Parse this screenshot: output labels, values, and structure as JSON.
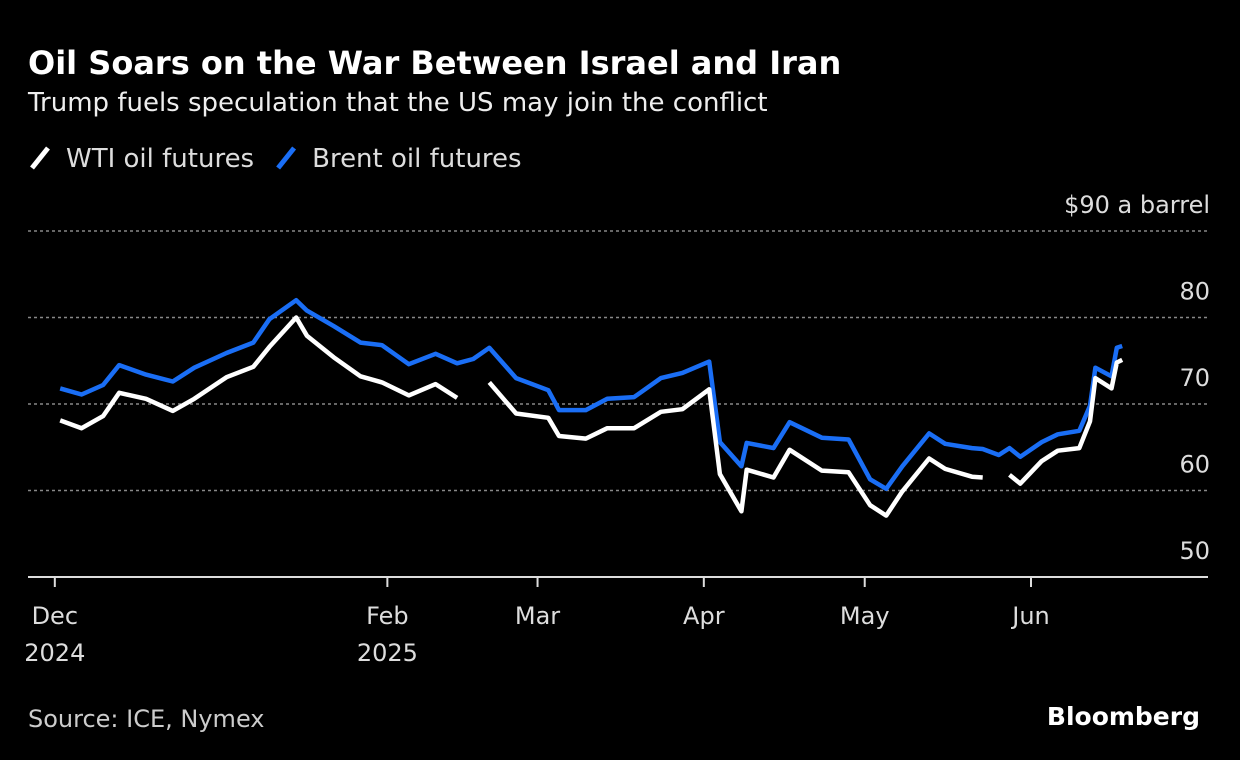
{
  "chart_data": {
    "type": "line",
    "title": "Oil Soars on the War Between Israel and Iran",
    "subtitle": "Trump fuels speculation that the US may join the conflict",
    "source": "Source: ICE, Nymex",
    "brand": "Bloomberg",
    "x": [
      "2024-12-02",
      "2024-12-06",
      "2024-12-10",
      "2024-12-13",
      "2024-12-18",
      "2024-12-23",
      "2024-12-27",
      "2025-01-02",
      "2025-01-07",
      "2025-01-10",
      "2025-01-15",
      "2025-01-17",
      "2025-01-22",
      "2025-01-27",
      "2025-01-31",
      "2025-02-05",
      "2025-02-10",
      "2025-02-14",
      "2025-02-17",
      "2025-02-20",
      "2025-02-25",
      "2025-03-03",
      "2025-03-05",
      "2025-03-10",
      "2025-03-14",
      "2025-03-19",
      "2025-03-24",
      "2025-03-28",
      "2025-04-02",
      "2025-04-04",
      "2025-04-08",
      "2025-04-09",
      "2025-04-14",
      "2025-04-17",
      "2025-04-23",
      "2025-04-28",
      "2025-05-02",
      "2025-05-05",
      "2025-05-08",
      "2025-05-13",
      "2025-05-16",
      "2025-05-21",
      "2025-05-23",
      "2025-05-26",
      "2025-05-28",
      "2025-05-30",
      "2025-06-03",
      "2025-06-06",
      "2025-06-10",
      "2025-06-12",
      "2025-06-13",
      "2025-06-16",
      "2025-06-17",
      "2025-06-18"
    ],
    "series": [
      {
        "name": "WTI oil futures",
        "color": "#ffffff",
        "values": [
          68.1,
          67.2,
          68.6,
          71.3,
          70.6,
          69.2,
          70.6,
          73.1,
          74.3,
          76.6,
          80.0,
          77.9,
          75.4,
          73.2,
          72.5,
          71.0,
          72.3,
          70.7,
          null,
          72.5,
          68.9,
          68.4,
          66.3,
          66.0,
          67.2,
          67.2,
          69.1,
          69.4,
          71.7,
          61.9,
          57.6,
          62.4,
          61.5,
          64.7,
          62.3,
          62.1,
          58.3,
          57.1,
          59.9,
          63.7,
          62.5,
          61.6,
          61.5,
          null,
          61.8,
          60.8,
          63.4,
          64.6,
          64.9,
          68.0,
          73.0,
          71.8,
          74.8,
          75.1
        ]
      },
      {
        "name": "Brent oil futures",
        "color": "#1a6ef5",
        "values": [
          71.8,
          71.1,
          72.2,
          74.5,
          73.4,
          72.6,
          74.2,
          75.9,
          77.1,
          79.8,
          82.0,
          80.8,
          79.0,
          77.1,
          76.8,
          74.6,
          75.8,
          74.7,
          75.2,
          76.5,
          73.0,
          71.6,
          69.3,
          69.3,
          70.6,
          70.8,
          73.0,
          73.6,
          74.9,
          65.6,
          62.8,
          65.5,
          64.9,
          67.9,
          66.1,
          65.9,
          61.3,
          60.2,
          62.8,
          66.6,
          65.4,
          64.9,
          64.8,
          64.1,
          64.9,
          63.9,
          65.6,
          66.5,
          66.9,
          69.8,
          74.2,
          73.2,
          76.5,
          76.7
        ]
      }
    ],
    "xlim": [
      "2024-11-26",
      "2025-07-04"
    ],
    "xticks": [
      {
        "value": "2024-12-01",
        "label": "Dec 2024"
      },
      {
        "value": "2025-02-01",
        "label": "Feb 2025"
      },
      {
        "value": "2025-03-01",
        "label": "Mar"
      },
      {
        "value": "2025-04-01",
        "label": "Apr"
      },
      {
        "value": "2025-05-01",
        "label": "May"
      },
      {
        "value": "2025-06-01",
        "label": "Jun"
      }
    ],
    "ylim": [
      50,
      90
    ],
    "yticks": [
      50,
      60,
      70,
      80,
      {
        "value": 90,
        "label": "$90 a barrel"
      }
    ],
    "grid": true
  }
}
